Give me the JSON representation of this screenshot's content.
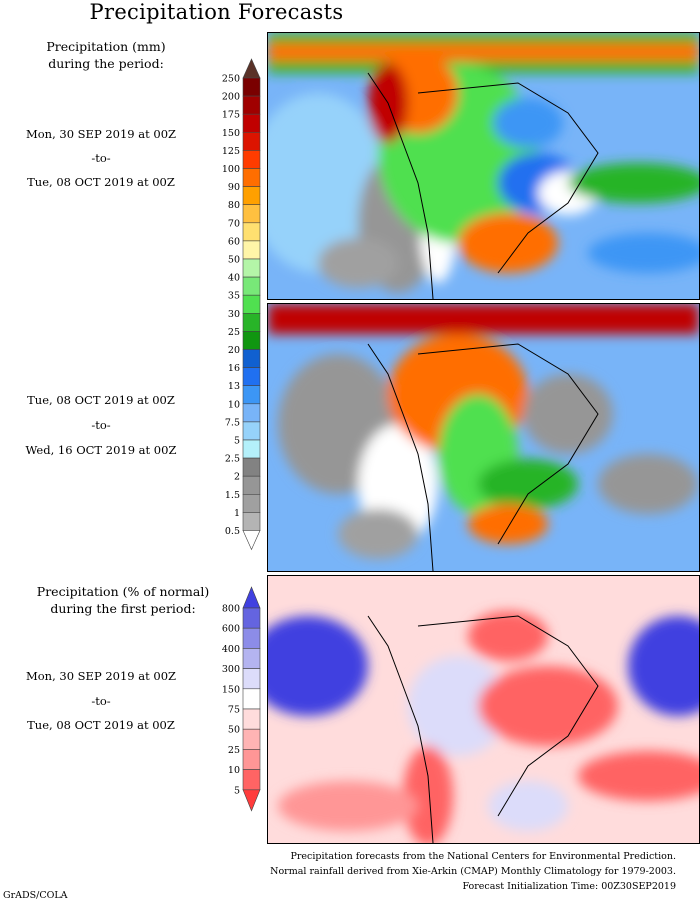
{
  "title": "Precipitation Forecasts",
  "panel1": {
    "heading_line1": "Precipitation (mm)",
    "heading_line2": "during the period:",
    "start": "Mon, 30 SEP 2019 at 00Z",
    "sep": "-to-",
    "end": "Tue, 08 OCT 2019 at 00Z"
  },
  "panel2": {
    "start": "Tue, 08 OCT 2019 at 00Z",
    "sep": "-to-",
    "end": "Wed, 16 OCT 2019 at 00Z"
  },
  "panel3": {
    "heading_line1": "Precipitation (% of normal)",
    "heading_line2": "during the first period:",
    "start": "Mon, 30 SEP 2019 at 00Z",
    "sep": "-to-",
    "end": "Tue, 08 OCT 2019 at 00Z"
  },
  "footer": {
    "line1": "Precipitation forecasts from the National Centers for Environmental Prediction.",
    "line2": "Normal rainfall derived from Xie-Arkin (CMAP) Monthly Climatology for 1979-2003.",
    "line3": "Forecast Initialization Time: 00Z30SEP2019"
  },
  "credit": "GrADS/COLA",
  "chart_data": [
    {
      "type": "heatmap",
      "title": "Precipitation (mm)",
      "colorbar_labels": [
        "250",
        "200",
        "175",
        "150",
        "125",
        "100",
        "90",
        "80",
        "70",
        "60",
        "50",
        "40",
        "35",
        "30",
        "25",
        "20",
        "16",
        "13",
        "10",
        "7.5",
        "5",
        "2.5",
        "2",
        "1.5",
        "1",
        "0.5"
      ],
      "colors": [
        "#7a0000",
        "#a00000",
        "#c00000",
        "#dc1400",
        "#ff3c00",
        "#ff6e00",
        "#ffa000",
        "#ffc040",
        "#ffe070",
        "#fff5a8",
        "#b4f5a8",
        "#78e878",
        "#50e050",
        "#28b428",
        "#109610",
        "#1060d0",
        "#2070f0",
        "#3c96f5",
        "#78b4f8",
        "#96d2fa",
        "#b4f0fa",
        "#828282",
        "#969696",
        "#a0a0a0",
        "#b4b4b4"
      ],
      "over_color": "#5a3228",
      "under_color": "#ffffff"
    },
    {
      "type": "heatmap",
      "title": "Precipitation (% of normal)",
      "colorbar_labels": [
        "800",
        "600",
        "400",
        "300",
        "150",
        "75",
        "50",
        "25",
        "10",
        "5"
      ],
      "colors": [
        "#6464e0",
        "#8c8ce8",
        "#b4b4f0",
        "#dcdcfa",
        "#ffffff",
        "#ffdcdc",
        "#ffb4b4",
        "#ff9696",
        "#ff6464"
      ],
      "over_color": "#4040e0",
      "under_color": "#ff3c3c"
    }
  ]
}
